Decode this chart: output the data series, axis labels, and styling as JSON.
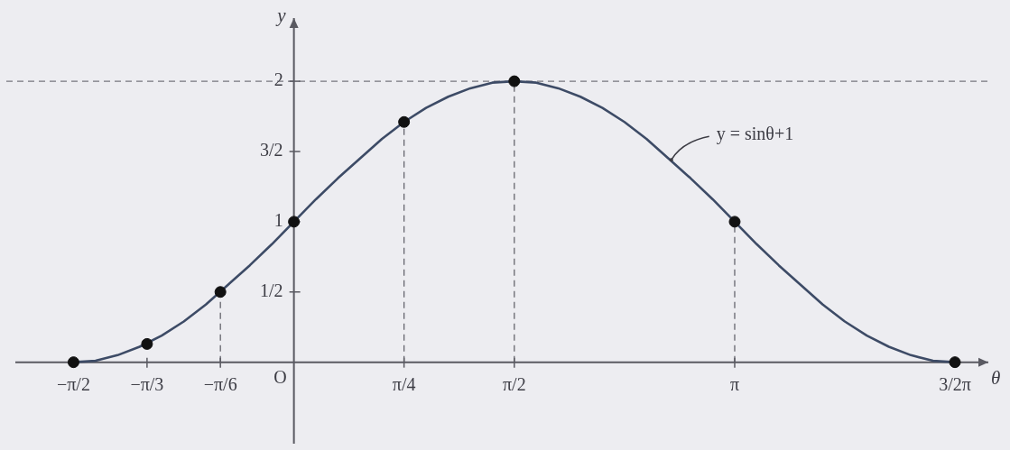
{
  "chart_data": {
    "type": "line",
    "xlabel": "θ",
    "ylabel": "y",
    "xlim": [
      -2.05,
      4.95
    ],
    "ylim": [
      -0.58,
      2.45
    ],
    "xticks": [
      {
        "value": -1.571,
        "label": "−π/2"
      },
      {
        "value": -1.047,
        "label": "−π/3"
      },
      {
        "value": -0.524,
        "label": "−π/6"
      },
      {
        "value": 0.785,
        "label": "π/4"
      },
      {
        "value": 1.571,
        "label": "π/2"
      },
      {
        "value": 3.142,
        "label": "π"
      },
      {
        "value": 4.712,
        "label": "3/2π"
      }
    ],
    "yticks": [
      {
        "value": 0.5,
        "label": "1/2"
      },
      1,
      {
        "value": 1.5,
        "label": "3/2"
      },
      2
    ],
    "series": [
      {
        "color": "#3d4b66",
        "marker": "none",
        "x": [
          -1.571,
          -1.414,
          -1.257,
          -1.1,
          -0.942,
          -0.785,
          -0.628,
          -0.471,
          -0.314,
          -0.157,
          0,
          0.157,
          0.314,
          0.471,
          0.628,
          0.785,
          0.942,
          1.1,
          1.257,
          1.414,
          1.571,
          1.728,
          1.885,
          2.042,
          2.199,
          2.356,
          2.513,
          2.67,
          2.827,
          2.985,
          3.142,
          3.299,
          3.456,
          3.613,
          3.77,
          3.927,
          4.084,
          4.241,
          4.398,
          4.555,
          4.712
        ],
        "values": [
          0,
          0.01,
          0.05,
          0.11,
          0.19,
          0.29,
          0.41,
          0.55,
          0.69,
          0.84,
          1,
          1.16,
          1.31,
          1.45,
          1.59,
          1.71,
          1.81,
          1.89,
          1.95,
          1.99,
          2,
          1.99,
          1.95,
          1.89,
          1.81,
          1.71,
          1.59,
          1.45,
          1.31,
          1.16,
          1,
          0.84,
          0.69,
          0.55,
          0.41,
          0.29,
          0.19,
          0.11,
          0.05,
          0.01,
          0
        ]
      },
      {
        "type": "scatter",
        "color": "#111111",
        "marker": "circle",
        "x": [
          -1.571,
          -1.047,
          -0.524,
          0,
          0.785,
          1.571,
          3.142,
          4.712
        ],
        "values": [
          0,
          0.13,
          0.5,
          1,
          1.71,
          2,
          1,
          0
        ]
      }
    ],
    "ref_lines": [
      {
        "axis": "y",
        "value": 2,
        "line_style": "dashed",
        "color": "#77777f"
      },
      {
        "axis": "x",
        "value": -0.524,
        "line_style": "dashed",
        "color": "#66666e"
      },
      {
        "axis": "x",
        "value": 0.785,
        "line_style": "dashed",
        "color": "#66666e"
      },
      {
        "axis": "x",
        "value": 1.571,
        "line_style": "dashed",
        "color": "#66666e"
      },
      {
        "axis": "x",
        "value": 3.142,
        "line_style": "dashed",
        "color": "#66666e"
      }
    ],
    "annotations": [
      "O",
      {
        "text": "y = sinθ+1",
        "x": 2.69,
        "y": 1.44
      }
    ]
  }
}
